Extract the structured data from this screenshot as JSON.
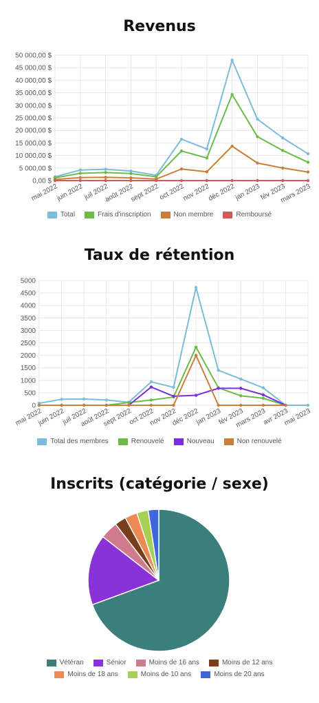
{
  "chart_data": [
    {
      "type": "line",
      "title": "Revenus",
      "categories": [
        "mai 2022",
        "juin 2022",
        "juil 2022",
        "août 2022",
        "sept 2022",
        "oct 2022",
        "nov 2022",
        "déc 2022",
        "jan 2023",
        "fév 2023",
        "mars 2023"
      ],
      "ylim": [
        0,
        50000
      ],
      "yticks": [
        "0,00 $",
        "5 000,00 $",
        "10 000,00 $",
        "15 000,00 $",
        "20 000,00 $",
        "25 000,00 $",
        "30 000,00 $",
        "35 000,00 $",
        "40 000,00 $",
        "45 000,00 $",
        "50 000,00 $"
      ],
      "grid": true,
      "legend_position": "bottom",
      "series": [
        {
          "name": "Total",
          "color": "#7bbcd8",
          "values": [
            1500,
            4200,
            4500,
            3800,
            2100,
            16500,
            12600,
            48000,
            24500,
            17000,
            10700
          ]
        },
        {
          "name": "Frais d'inscription",
          "color": "#6cba48",
          "values": [
            1100,
            2900,
            3200,
            2800,
            1500,
            11800,
            9000,
            34300,
            17500,
            12000,
            7300
          ]
        },
        {
          "name": "Non membre",
          "color": "#c97f3a",
          "values": [
            400,
            1200,
            1300,
            1100,
            600,
            4600,
            3500,
            13700,
            7000,
            5000,
            3400
          ]
        },
        {
          "name": "Remboursé",
          "color": "#d2585a",
          "values": [
            0,
            0,
            0,
            0,
            0,
            0,
            0,
            0,
            0,
            0,
            0
          ]
        }
      ]
    },
    {
      "type": "line",
      "title": "Taux de rétention",
      "categories": [
        "mai 2022",
        "juin 2022",
        "juil 2022",
        "août 2022",
        "sept 2022",
        "oct 2022",
        "nov 2022",
        "déc 2022",
        "jan 2023",
        "fév 2023",
        "mars 2023",
        "avr 2023",
        "mai 2023"
      ],
      "ylim": [
        0,
        5000
      ],
      "yticks": [
        "0",
        "500",
        "1000",
        "1500",
        "2000",
        "2500",
        "3000",
        "3500",
        "4000",
        "4500",
        "5000"
      ],
      "grid": true,
      "legend_position": "bottom",
      "series": [
        {
          "name": "Total des membres",
          "color": "#7bbcd8",
          "values": [
            80,
            240,
            250,
            210,
            120,
            940,
            720,
            4720,
            1400,
            1050,
            700,
            0,
            0
          ]
        },
        {
          "name": "Renouvelé",
          "color": "#6cba48",
          "values": [
            0,
            0,
            0,
            0,
            110,
            210,
            330,
            2330,
            700,
            380,
            280,
            0,
            null
          ]
        },
        {
          "name": "Nouveau",
          "color": "#7d2ed6",
          "values": [
            0,
            0,
            0,
            0,
            0,
            730,
            360,
            400,
            680,
            680,
            420,
            0,
            null
          ]
        },
        {
          "name": "Non renouvelé",
          "color": "#c97f3a",
          "values": [
            0,
            0,
            0,
            0,
            0,
            0,
            0,
            2000,
            0,
            0,
            0,
            0,
            null
          ]
        }
      ]
    },
    {
      "type": "pie",
      "title": "Inscrits (catégorie / sexe)",
      "legend_position": "bottom",
      "slices": [
        {
          "label": "Vétéran",
          "value": 69,
          "color": "#3a7f7b"
        },
        {
          "label": "Sénior",
          "value": 16,
          "color": "#8832d8"
        },
        {
          "label": "Moins de 16 ans",
          "value": 4,
          "color": "#cf7b8d"
        },
        {
          "label": "Moins de 12 ans",
          "value": 2.6,
          "color": "#7a3d1a"
        },
        {
          "label": "Moins de 18 ans",
          "value": 2.8,
          "color": "#ee8955"
        },
        {
          "label": "Moins de 10 ans",
          "value": 2.6,
          "color": "#a7cf55"
        },
        {
          "label": "Moins de 20 ans",
          "value": 2.4,
          "color": "#3e67dc"
        }
      ]
    }
  ]
}
